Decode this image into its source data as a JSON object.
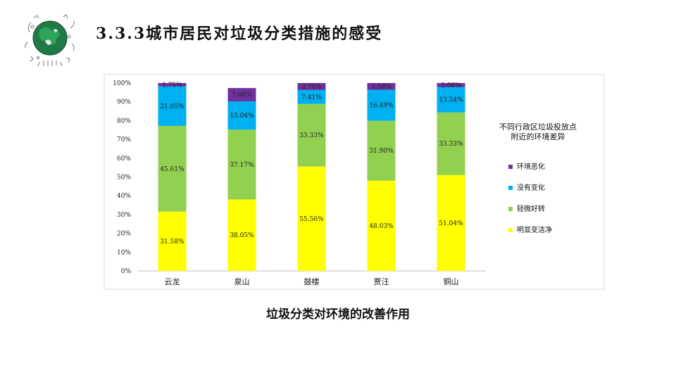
{
  "header": {
    "title": "3.3.3城市居民对垃圾分类措施的感受"
  },
  "chart_data": {
    "type": "bar",
    "stacked": true,
    "title": "垃圾分类对环境的改善作用",
    "legend_title": [
      "不同行政区垃圾投放点",
      "附近的环境差异"
    ],
    "legend_position": "right",
    "categories": [
      "云龙",
      "泉山",
      "鼓楼",
      "贾汪",
      "铜山"
    ],
    "ylim": [
      0,
      100
    ],
    "yticks": [
      "0%",
      "10%",
      "20%",
      "30%",
      "40%",
      "50%",
      "60%",
      "70%",
      "80%",
      "90%",
      "100%"
    ],
    "series": [
      {
        "name": "明显变洁净",
        "color": "#FFFF00",
        "values": [
          31.58,
          38.05,
          55.56,
          48.03,
          51.04
        ],
        "labels": [
          "31.58%",
          "38.05%",
          "55.56%",
          "48.03%",
          "51.04%"
        ]
      },
      {
        "name": "轻微好转",
        "color": "#92D050",
        "values": [
          45.61,
          37.17,
          33.33,
          31.9,
          33.33
        ],
        "labels": [
          "45.61%",
          "37.17%",
          "33.33%",
          "31.90%",
          "33.33%"
        ]
      },
      {
        "name": "没有变化",
        "color": "#00B0F0",
        "values": [
          21.05,
          15.04,
          7.41,
          16.49,
          13.54
        ],
        "labels": [
          "21.05%",
          "15.04%",
          "7.41%",
          "16.49%",
          "13.54%"
        ]
      },
      {
        "name": "环境恶化",
        "color": "#7030A0",
        "values": [
          1.75,
          7.08,
          3.7,
          3.58,
          2.08
        ],
        "labels": [
          "1.75%",
          "7.08%",
          "3.70%",
          "3.58%",
          "2.08%"
        ]
      }
    ],
    "legend_order": [
      "环境恶化",
      "没有变化",
      "轻微好转",
      "明显变洁净"
    ]
  }
}
